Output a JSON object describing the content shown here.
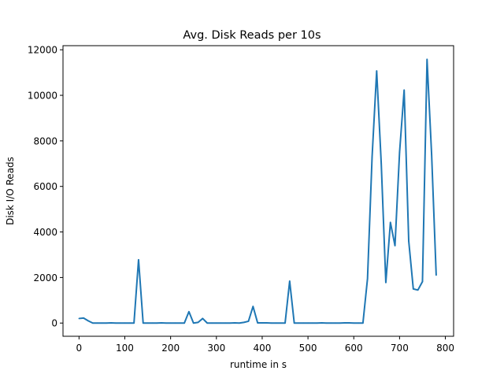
{
  "chart_data": {
    "type": "line",
    "title": "Avg. Disk Reads per 10s",
    "xlabel": "runtime in s",
    "ylabel": "Disk I/O Reads",
    "xlim": [
      -35,
      818
    ],
    "ylim": [
      -580,
      12180
    ],
    "xticks": [
      0,
      100,
      200,
      300,
      400,
      500,
      600,
      700,
      800
    ],
    "yticks": [
      0,
      2000,
      4000,
      6000,
      8000,
      10000,
      12000
    ],
    "grid": false,
    "legend": "none",
    "series": [
      {
        "color": "#1f77b4",
        "x": [
          0,
          10,
          20,
          30,
          40,
          50,
          60,
          70,
          80,
          90,
          100,
          110,
          120,
          130,
          140,
          150,
          160,
          170,
          180,
          190,
          200,
          210,
          220,
          230,
          240,
          250,
          260,
          270,
          280,
          290,
          300,
          310,
          320,
          330,
          340,
          350,
          360,
          370,
          380,
          390,
          400,
          410,
          420,
          430,
          440,
          450,
          460,
          470,
          480,
          490,
          500,
          510,
          520,
          530,
          540,
          550,
          560,
          570,
          580,
          590,
          600,
          610,
          620,
          630,
          640,
          650,
          660,
          670,
          680,
          690,
          700,
          710,
          720,
          730,
          740,
          750,
          760,
          770,
          780
        ],
        "y": [
          200,
          220,
          100,
          0,
          0,
          0,
          0,
          10,
          0,
          0,
          0,
          0,
          0,
          2780,
          0,
          0,
          0,
          0,
          10,
          0,
          0,
          0,
          0,
          0,
          500,
          0,
          30,
          200,
          0,
          0,
          0,
          0,
          0,
          0,
          10,
          0,
          30,
          80,
          730,
          10,
          10,
          10,
          0,
          0,
          0,
          0,
          1840,
          0,
          0,
          0,
          0,
          0,
          0,
          10,
          0,
          0,
          0,
          0,
          10,
          10,
          0,
          0,
          0,
          1950,
          7300,
          11070,
          7000,
          1780,
          4420,
          3400,
          7500,
          10230,
          3600,
          1500,
          1450,
          1820,
          11580,
          7400,
          2100
        ]
      }
    ]
  }
}
